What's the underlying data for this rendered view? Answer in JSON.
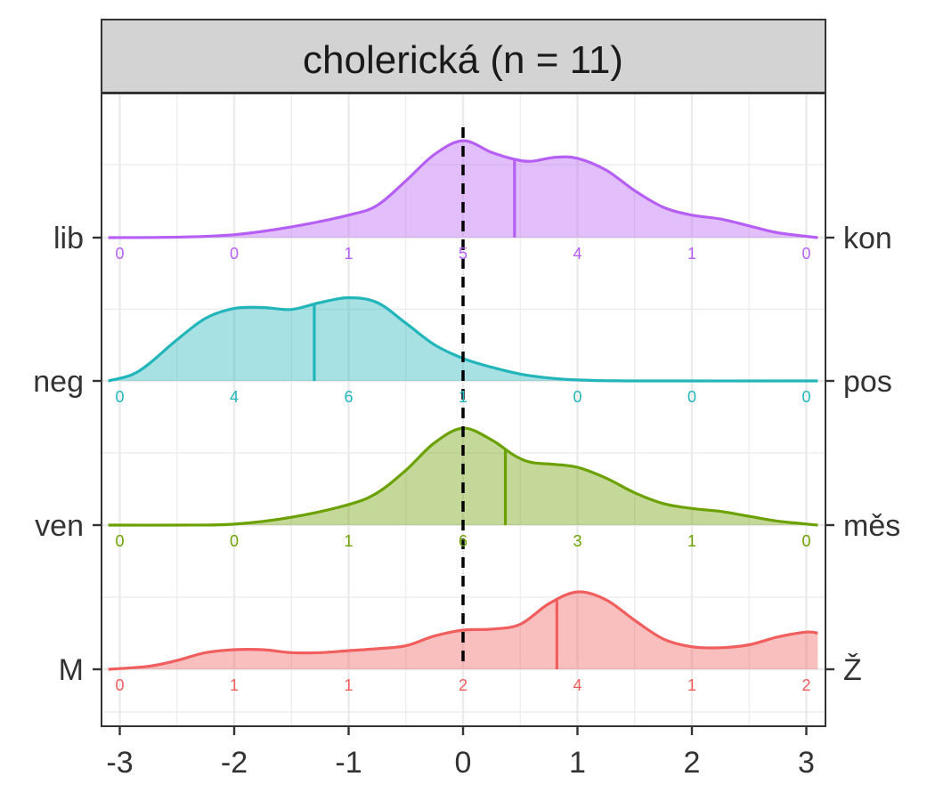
{
  "chart_data": {
    "type": "ridgeline",
    "title": "cholerická (n = 11)",
    "xlabel": "",
    "ylabel": "",
    "xlim": [
      -3.1,
      3.1
    ],
    "x_ticks": [
      -3,
      -2,
      -1,
      0,
      1,
      2,
      3
    ],
    "x_tick_labels": [
      "-3",
      "-2",
      "-1",
      "0",
      "1",
      "2",
      "3"
    ],
    "grid": true,
    "reference_line": {
      "x": 0,
      "style": "dashed"
    },
    "count_positions": [
      -3,
      -2,
      -1,
      0,
      1,
      2,
      3
    ],
    "series": [
      {
        "left": "lib",
        "right": "kon",
        "color": "#B65FF4",
        "median": 0.45,
        "counts": [
          "0",
          "0",
          "1",
          "5",
          "4",
          "1",
          "0"
        ],
        "density": [
          [
            -3.1,
            0
          ],
          [
            -2.5,
            0.005
          ],
          [
            -2.0,
            0.03
          ],
          [
            -1.5,
            0.11
          ],
          [
            -1.0,
            0.23
          ],
          [
            -0.75,
            0.33
          ],
          [
            -0.5,
            0.58
          ],
          [
            -0.25,
            0.85
          ],
          [
            0,
            0.99
          ],
          [
            0.25,
            0.87
          ],
          [
            0.45,
            0.8
          ],
          [
            0.6,
            0.78
          ],
          [
            0.8,
            0.82
          ],
          [
            1.0,
            0.81
          ],
          [
            1.25,
            0.69
          ],
          [
            1.5,
            0.48
          ],
          [
            1.75,
            0.31
          ],
          [
            2.0,
            0.23
          ],
          [
            2.25,
            0.19
          ],
          [
            2.5,
            0.12
          ],
          [
            2.75,
            0.05
          ],
          [
            3.1,
            0
          ]
        ]
      },
      {
        "left": "neg",
        "right": "pos",
        "color": "#22B5BA",
        "median": -1.3,
        "counts": [
          "0",
          "4",
          "6",
          "1",
          "0",
          "0",
          "0"
        ],
        "density": [
          [
            -3.1,
            0
          ],
          [
            -2.9,
            0.06
          ],
          [
            -2.75,
            0.17
          ],
          [
            -2.5,
            0.42
          ],
          [
            -2.25,
            0.64
          ],
          [
            -2.0,
            0.74
          ],
          [
            -1.75,
            0.75
          ],
          [
            -1.5,
            0.73
          ],
          [
            -1.25,
            0.8
          ],
          [
            -1.0,
            0.85
          ],
          [
            -0.75,
            0.8
          ],
          [
            -0.5,
            0.59
          ],
          [
            -0.25,
            0.37
          ],
          [
            0,
            0.23
          ],
          [
            0.25,
            0.14
          ],
          [
            0.5,
            0.07
          ],
          [
            0.75,
            0.03
          ],
          [
            1.0,
            0.01
          ],
          [
            1.5,
            0.0
          ],
          [
            3.1,
            0
          ]
        ]
      },
      {
        "left": "ven",
        "right": "měs",
        "color": "#6BA100",
        "median": 0.37,
        "counts": [
          "0",
          "0",
          "1",
          "6",
          "3",
          "1",
          "0"
        ],
        "density": [
          [
            -3.1,
            0
          ],
          [
            -2.5,
            0.0
          ],
          [
            -2.0,
            0.01
          ],
          [
            -1.5,
            0.08
          ],
          [
            -1.0,
            0.21
          ],
          [
            -0.75,
            0.33
          ],
          [
            -0.5,
            0.56
          ],
          [
            -0.25,
            0.84
          ],
          [
            0,
            0.99
          ],
          [
            0.25,
            0.87
          ],
          [
            0.45,
            0.71
          ],
          [
            0.6,
            0.64
          ],
          [
            0.8,
            0.62
          ],
          [
            1.0,
            0.59
          ],
          [
            1.25,
            0.48
          ],
          [
            1.5,
            0.33
          ],
          [
            1.75,
            0.22
          ],
          [
            2.0,
            0.17
          ],
          [
            2.25,
            0.14
          ],
          [
            2.5,
            0.09
          ],
          [
            2.75,
            0.04
          ],
          [
            3.1,
            0
          ]
        ]
      },
      {
        "left": "M",
        "right": "Ž",
        "color": "#F15E5E",
        "median": 0.82,
        "counts": [
          "0",
          "1",
          "1",
          "2",
          "4",
          "1",
          "2"
        ],
        "density": [
          [
            -3.1,
            0
          ],
          [
            -2.75,
            0.03
          ],
          [
            -2.5,
            0.09
          ],
          [
            -2.25,
            0.17
          ],
          [
            -2.0,
            0.2
          ],
          [
            -1.75,
            0.2
          ],
          [
            -1.5,
            0.17
          ],
          [
            -1.25,
            0.17
          ],
          [
            -1.0,
            0.19
          ],
          [
            -0.75,
            0.21
          ],
          [
            -0.5,
            0.24
          ],
          [
            -0.25,
            0.34
          ],
          [
            0,
            0.4
          ],
          [
            0.25,
            0.41
          ],
          [
            0.5,
            0.46
          ],
          [
            0.75,
            0.67
          ],
          [
            1.0,
            0.79
          ],
          [
            1.25,
            0.71
          ],
          [
            1.5,
            0.5
          ],
          [
            1.75,
            0.31
          ],
          [
            2.0,
            0.23
          ],
          [
            2.25,
            0.22
          ],
          [
            2.5,
            0.25
          ],
          [
            2.75,
            0.33
          ],
          [
            3.0,
            0.38
          ],
          [
            3.1,
            0.37
          ]
        ]
      }
    ]
  }
}
